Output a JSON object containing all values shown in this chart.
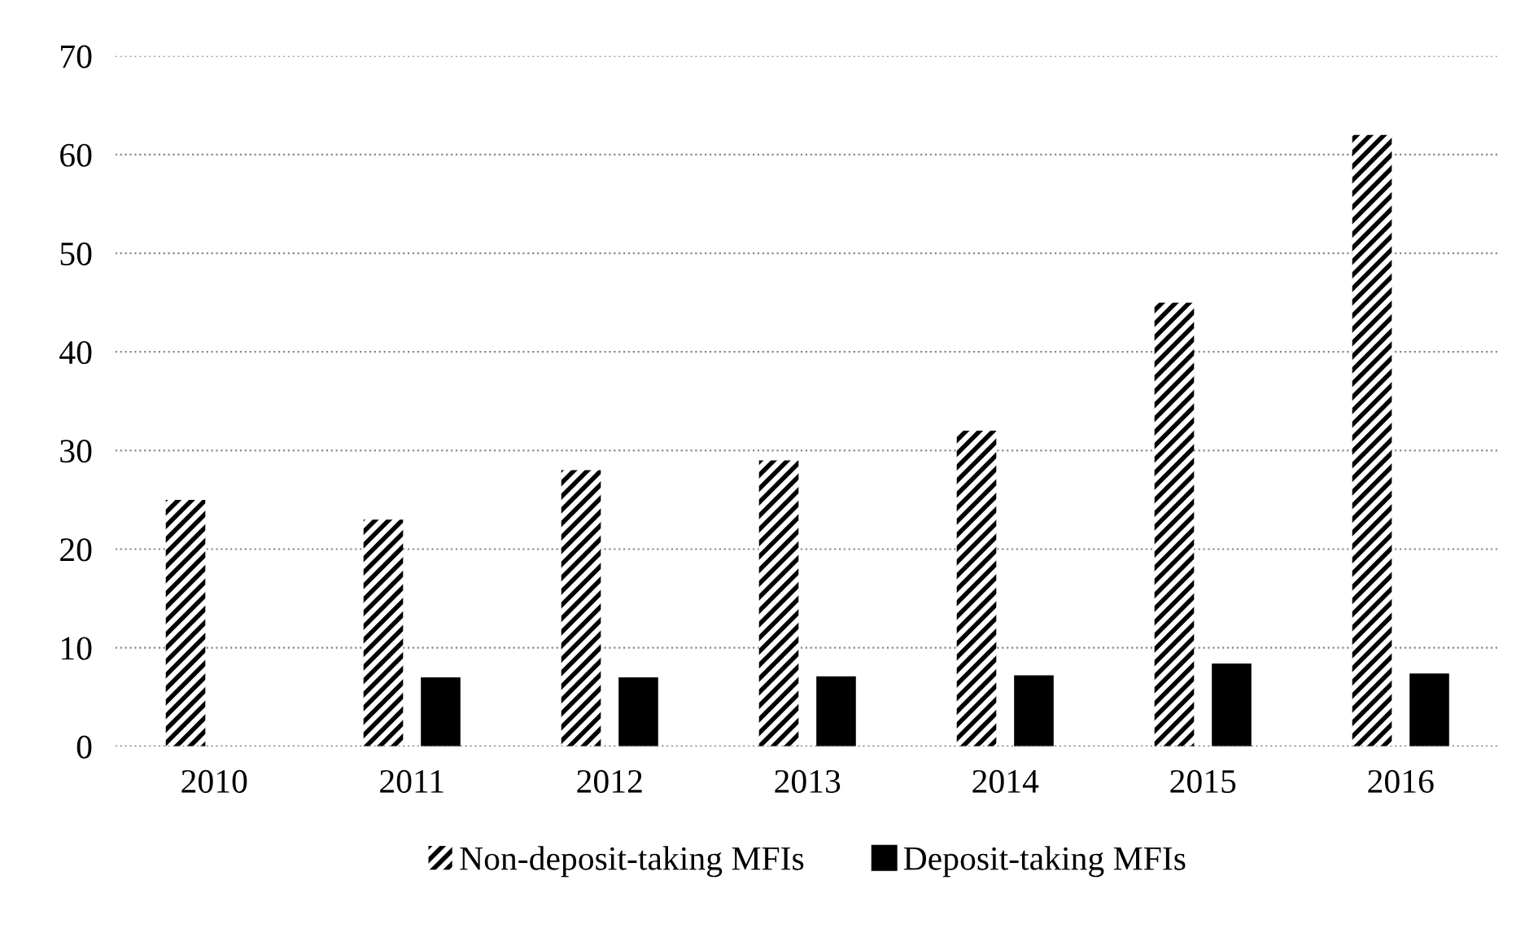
{
  "chart_data": {
    "type": "bar",
    "categories": [
      "2010",
      "2011",
      "2012",
      "2013",
      "2014",
      "2015",
      "2016"
    ],
    "series": [
      {
        "name": "Non-deposit-taking MFIs",
        "color": "#000000",
        "values": [
          25,
          23,
          28,
          29,
          32,
          45,
          62
        ]
      },
      {
        "name": "Deposit-taking MFIs",
        "color": "#000000",
        "values": [
          null,
          7.0,
          7.0,
          7.1,
          7.2,
          8.4,
          7.4
        ]
      }
    ],
    "ylim": [
      0,
      70
    ],
    "yticks": [
      0,
      10,
      20,
      30,
      40,
      50,
      60,
      70
    ],
    "grid": "y",
    "legend": "bottom"
  }
}
